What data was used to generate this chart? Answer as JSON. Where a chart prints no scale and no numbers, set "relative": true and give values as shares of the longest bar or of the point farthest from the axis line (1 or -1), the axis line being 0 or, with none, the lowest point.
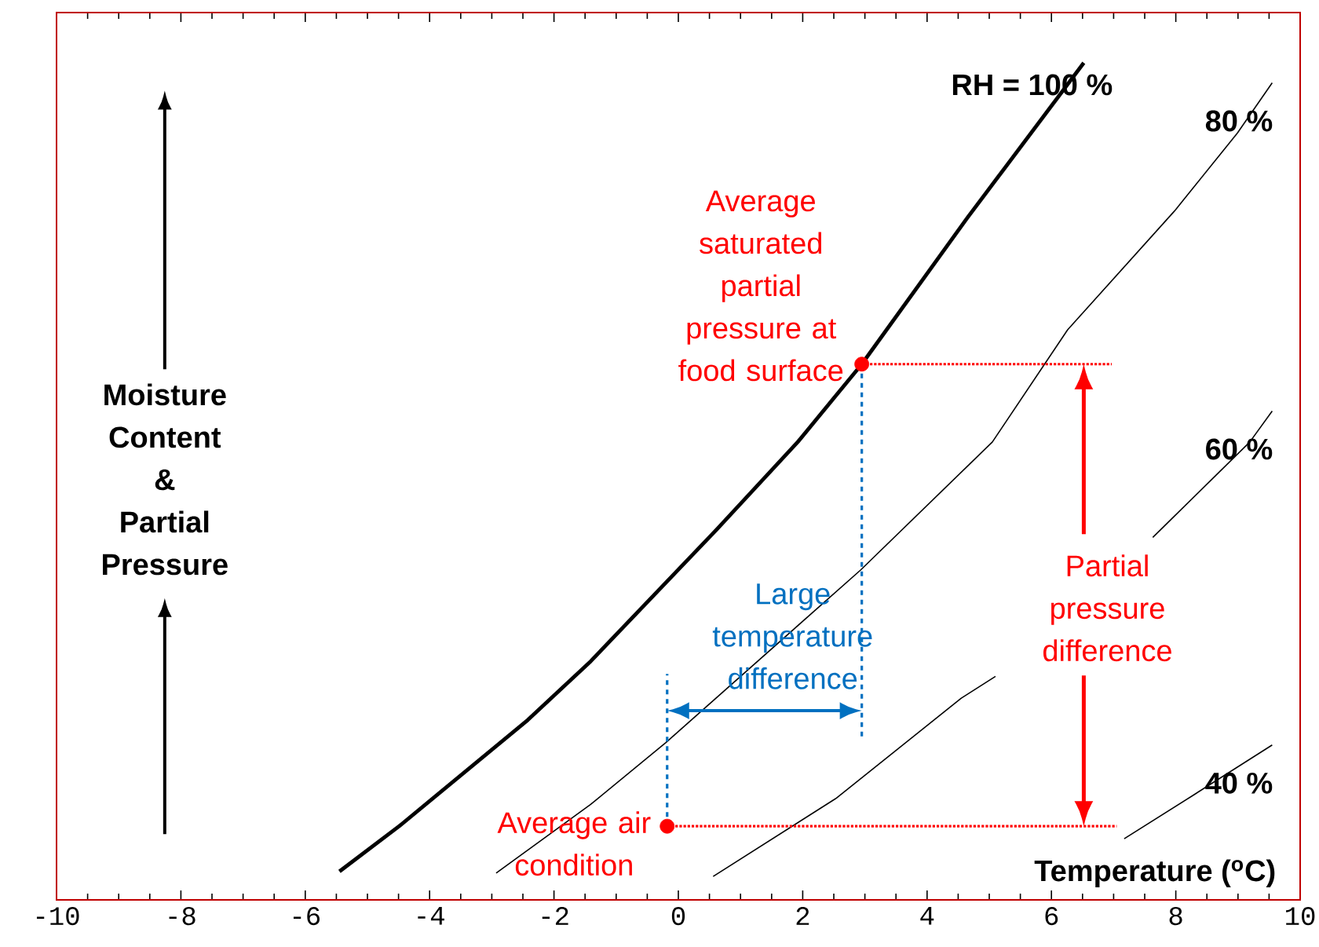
{
  "chart_data": {
    "type": "line",
    "relative": true,
    "xlabel": "Temperature  ($^{o}$C)",
    "ylabel": "Moisture Content & Partial Pressure",
    "xlim": [
      -10,
      10
    ],
    "xticks": [
      -10,
      -8,
      -6,
      -4,
      -2,
      0,
      2,
      4,
      6,
      8,
      10
    ],
    "series": [
      {
        "name": "RH = 100 %",
        "color": "#000000",
        "x": [
          -5.45,
          -4.49,
          -2.42,
          -1.41,
          0.61,
          1.92,
          2.95,
          4.65,
          6.52
        ],
        "values": [
          0.034,
          0.088,
          0.215,
          0.285,
          0.442,
          0.547,
          0.64,
          0.815,
          1.0
        ]
      },
      {
        "name": "80 %",
        "color": "#000000",
        "x": [
          -2.93,
          -1.41,
          -0.2,
          2.93,
          5.05,
          6.26,
          7.98,
          8.99,
          9.55
        ],
        "values": [
          0.032,
          0.114,
          0.188,
          0.394,
          0.547,
          0.681,
          0.823,
          0.916,
          0.976
        ]
      },
      {
        "name": "60 %",
        "color": "#000000",
        "x": [
          0.56,
          2.53,
          4.55,
          5.1,
          6.4,
          7.63,
          9.19,
          9.55
        ],
        "values": [
          0.028,
          0.121,
          0.241,
          0.267,
          null,
          0.433,
          0.547,
          0.584
        ]
      },
      {
        "name": "40 %",
        "color": "#000000",
        "x": [
          7.17,
          8.28,
          9.55
        ],
        "values": [
          0.073,
          0.125,
          0.185
        ]
      },
      {
        "type": "scatter",
        "marker": "circle",
        "color": "#ff0000",
        "x": [
          2.95,
          -0.18
        ],
        "values": [
          0.64,
          0.088
        ]
      },
      {
        "color": "#ff0000",
        "line_style": "dotted",
        "x": [
          2.95,
          6.97
        ],
        "values": [
          0.64,
          0.64
        ]
      },
      {
        "color": "#ff0000",
        "line_style": "dotted",
        "x": [
          -0.18,
          7.05
        ],
        "values": [
          0.088,
          0.088
        ]
      },
      {
        "color": "#0070c0",
        "line_style": "dashed",
        "x": [
          2.95,
          2.95
        ],
        "values": [
          0.64,
          0.192
        ]
      },
      {
        "color": "#0070c0",
        "line_style": "dashed",
        "x": [
          -0.18,
          -0.18
        ],
        "values": [
          0.088,
          0.27
        ]
      }
    ],
    "annotations": [
      {
        "text": "Average saturated partial pressure at food surface",
        "x": 2.95,
        "y": 0.64
      },
      {
        "text": "Average air condition",
        "x": -0.18,
        "y": 0.088
      },
      "Large temperature difference",
      "Partial pressure difference"
    ]
  }
}
